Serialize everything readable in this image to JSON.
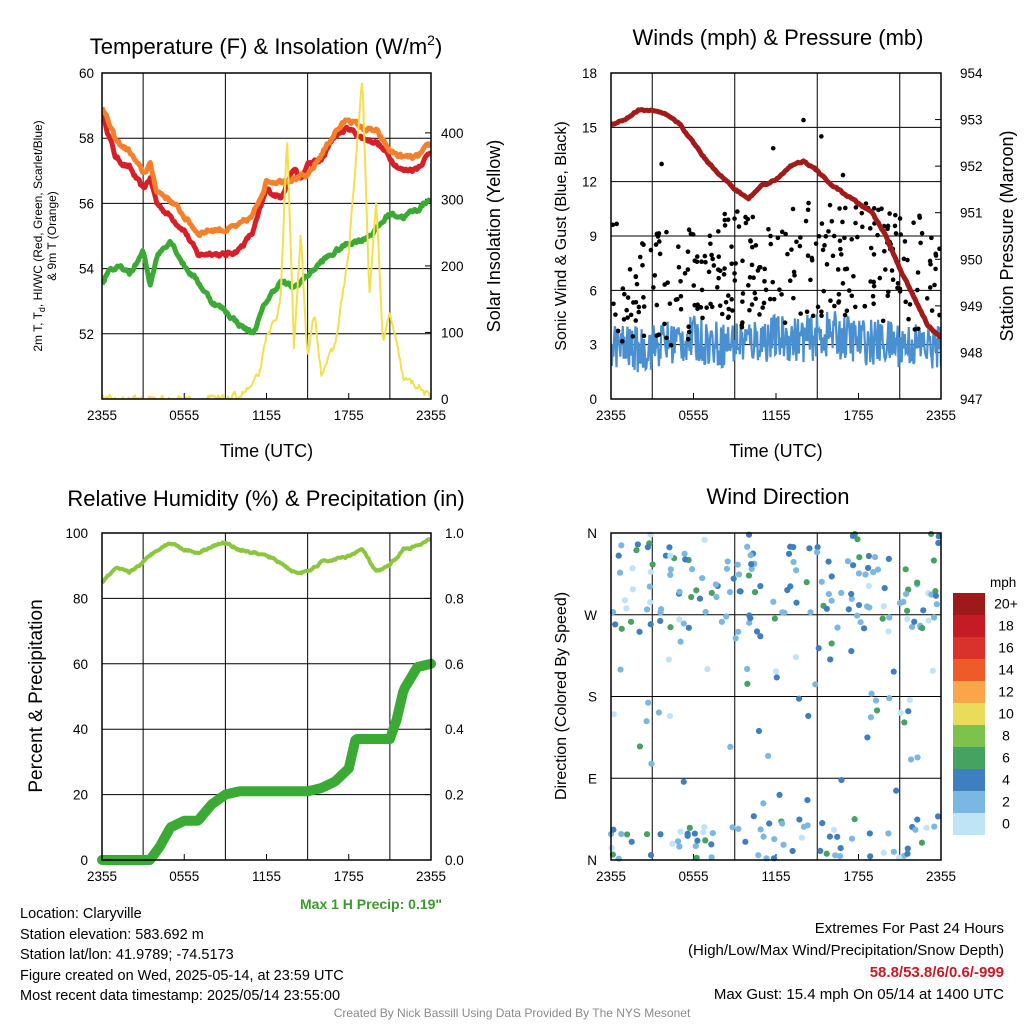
{
  "colors": {
    "red": "#d62027",
    "orange": "#f4802c",
    "green": "#3aaa35",
    "yellow": "#f4e04d",
    "maroon": "#a11b1b",
    "blue": "#4a90d0",
    "black": "#000000",
    "lightgreen": "#8cc63f"
  },
  "chart_data": [
    {
      "id": "temperature",
      "type": "line",
      "title": "Temperature (F) & Insolation (W/m",
      "title_superscript": "2",
      "title_suffix": ")",
      "xlabel": "Time (UTC)",
      "ylabel_left_lines": [
        "2m T, T",
        "d",
        ", HI/WC (Red, Green, Scarlet/Blue)",
        "& 9m T (Orange)"
      ],
      "ylabel_right": "Solar Insolation (Yellow)",
      "x_ticks": [
        "2355",
        "0555",
        "1155",
        "1755",
        "2355"
      ],
      "ylim": [
        50,
        60
      ],
      "yticks": [
        52,
        54,
        56,
        58,
        60
      ],
      "ylim_right": [
        0,
        490
      ],
      "yticks_right": [
        0,
        100,
        200,
        300,
        400
      ],
      "series": [
        {
          "name": "2m T (Red)",
          "axis": "left",
          "color": "#d62027",
          "anchors": [
            [
              0,
              58.8
            ],
            [
              1,
              57.4
            ],
            [
              2,
              57.1
            ],
            [
              3,
              56.4
            ],
            [
              3.5,
              56.8
            ],
            [
              4,
              56.0
            ],
            [
              5,
              55.6
            ],
            [
              6,
              55.2
            ],
            [
              7,
              54.4
            ],
            [
              8,
              54.5
            ],
            [
              9,
              54.4
            ],
            [
              10,
              54.6
            ],
            [
              11,
              55.1
            ],
            [
              12,
              56.4
            ],
            [
              13,
              56.2
            ],
            [
              14,
              57.1
            ],
            [
              14.5,
              56.7
            ],
            [
              15,
              57.2
            ],
            [
              16,
              57.3
            ],
            [
              17,
              58.1
            ],
            [
              18,
              58.3
            ],
            [
              19,
              58.0
            ],
            [
              20,
              57.9
            ],
            [
              21,
              57.4
            ],
            [
              22,
              57.0
            ],
            [
              23,
              57.1
            ],
            [
              24,
              57.6
            ]
          ]
        },
        {
          "name": "9m T (Orange)",
          "axis": "left",
          "color": "#f4802c",
          "anchors": [
            [
              0,
              59.0
            ],
            [
              1,
              57.9
            ],
            [
              2,
              57.6
            ],
            [
              3,
              56.9
            ],
            [
              3.5,
              57.2
            ],
            [
              4,
              56.4
            ],
            [
              5,
              56.1
            ],
            [
              6,
              55.6
            ],
            [
              7,
              55.1
            ],
            [
              8,
              55.2
            ],
            [
              9,
              55.2
            ],
            [
              10,
              55.3
            ],
            [
              11,
              55.6
            ],
            [
              12,
              56.7
            ],
            [
              13,
              56.7
            ],
            [
              14,
              56.8
            ],
            [
              15,
              56.8
            ],
            [
              16,
              57.5
            ],
            [
              17,
              58.2
            ],
            [
              18,
              58.6
            ],
            [
              19,
              58.3
            ],
            [
              20,
              58.2
            ],
            [
              21,
              57.6
            ],
            [
              22,
              57.4
            ],
            [
              23,
              57.4
            ],
            [
              24,
              57.8
            ]
          ]
        },
        {
          "name": "2m Td (Green)",
          "axis": "left",
          "color": "#3aaa35",
          "anchors": [
            [
              0,
              53.5
            ],
            [
              0.5,
              54.0
            ],
            [
              1.5,
              54.0
            ],
            [
              2,
              53.8
            ],
            [
              3,
              54.5
            ],
            [
              3.5,
              53.5
            ],
            [
              4,
              54.4
            ],
            [
              5,
              54.9
            ],
            [
              6,
              54.1
            ],
            [
              7,
              53.6
            ],
            [
              8,
              53.0
            ],
            [
              9,
              52.7
            ],
            [
              10,
              52.3
            ],
            [
              11,
              52.0
            ],
            [
              12,
              53.0
            ],
            [
              13,
              53.6
            ],
            [
              14,
              53.4
            ],
            [
              15,
              53.8
            ],
            [
              16,
              54.2
            ],
            [
              17,
              54.5
            ],
            [
              18,
              54.8
            ],
            [
              19,
              54.9
            ],
            [
              20,
              55.2
            ],
            [
              21,
              55.7
            ],
            [
              22,
              55.6
            ],
            [
              23,
              55.8
            ],
            [
              24,
              56.2
            ]
          ]
        },
        {
          "name": "Solar Insolation (Yellow)",
          "axis": "right",
          "color": "#f4e04d",
          "anchors": [
            [
              0,
              0
            ],
            [
              9,
              0
            ],
            [
              10,
              5
            ],
            [
              11,
              20
            ],
            [
              11.5,
              40
            ],
            [
              12,
              90
            ],
            [
              13,
              140
            ],
            [
              13.5,
              390
            ],
            [
              14,
              80
            ],
            [
              14.5,
              250
            ],
            [
              15,
              60
            ],
            [
              15.5,
              130
            ],
            [
              16,
              40
            ],
            [
              17,
              80
            ],
            [
              18,
              220
            ],
            [
              19,
              485
            ],
            [
              19.5,
              150
            ],
            [
              20,
              300
            ],
            [
              20.5,
              80
            ],
            [
              21,
              130
            ],
            [
              22,
              30
            ],
            [
              23,
              20
            ],
            [
              24,
              0
            ]
          ]
        }
      ]
    },
    {
      "id": "winds",
      "type": "line",
      "title": "Winds (mph) & Pressure (mb)",
      "xlabel": "Time (UTC)",
      "ylabel_left": "Sonic Wind & Gust (Blue, Black)",
      "ylabel_right": "Station Pressure (Maroon)",
      "x_ticks": [
        "2355",
        "0555",
        "1155",
        "1755",
        "2355"
      ],
      "ylim": [
        0,
        18
      ],
      "yticks": [
        0,
        3,
        6,
        9,
        12,
        15,
        18
      ],
      "ylim_right": [
        947,
        954
      ],
      "yticks_right": [
        947,
        948,
        949,
        950,
        951,
        952,
        953,
        954
      ],
      "series": [
        {
          "name": "Station Pressure (Maroon)",
          "axis": "right",
          "color": "#a11b1b",
          "anchors": [
            [
              0,
              952.9
            ],
            [
              1,
              953.0
            ],
            [
              2,
              953.2
            ],
            [
              3,
              953.2
            ],
            [
              4,
              953.1
            ],
            [
              5,
              952.9
            ],
            [
              6,
              952.5
            ],
            [
              7,
              952.1
            ],
            [
              8,
              951.8
            ],
            [
              9,
              951.5
            ],
            [
              10,
              951.3
            ],
            [
              11,
              951.6
            ],
            [
              12,
              951.7
            ],
            [
              13,
              952.0
            ],
            [
              14,
              952.1
            ],
            [
              15,
              951.9
            ],
            [
              16,
              951.6
            ],
            [
              17,
              951.4
            ],
            [
              18,
              951.2
            ],
            [
              19,
              951.0
            ],
            [
              20,
              950.5
            ],
            [
              21,
              949.8
            ],
            [
              22,
              949.2
            ],
            [
              23,
              948.6
            ],
            [
              24,
              948.3
            ]
          ]
        },
        {
          "name": "Sonic Wind (Blue)",
          "axis": "left",
          "color": "#4a90d0",
          "anchors": [
            [
              0,
              3.0
            ],
            [
              2,
              2.7
            ],
            [
              4,
              3.1
            ],
            [
              6,
              3.3
            ],
            [
              8,
              3.0
            ],
            [
              10,
              3.2
            ],
            [
              12,
              3.4
            ],
            [
              14,
              3.3
            ],
            [
              16,
              3.6
            ],
            [
              18,
              3.2
            ],
            [
              20,
              3.1
            ],
            [
              22,
              3.0
            ],
            [
              24,
              2.8
            ]
          ]
        },
        {
          "name": "Gust (Black)",
          "axis": "left",
          "color": "#000000",
          "anchors": [
            [
              0,
              6.5
            ],
            [
              4,
              6.0
            ],
            [
              8,
              7.0
            ],
            [
              12,
              7.0
            ],
            [
              16,
              8.0
            ],
            [
              20,
              7.5
            ],
            [
              24,
              6.5
            ]
          ],
          "max": 15.4
        }
      ]
    },
    {
      "id": "humidity",
      "type": "line",
      "title": "Relative Humidity (%) & Precipitation (in)",
      "ylabel_left": "Percent & Precipitation",
      "x_ticks": [
        "2355",
        "0555",
        "1155",
        "1755",
        "2355"
      ],
      "ylim": [
        0,
        100
      ],
      "yticks": [
        0,
        20,
        40,
        60,
        80,
        100
      ],
      "ylim_right": [
        0,
        1.0
      ],
      "yticks_right": [
        "0.0",
        "0.2",
        "0.4",
        "0.6",
        "0.8",
        "1.0"
      ],
      "annotation": "Max 1 H Precip: 0.19\"",
      "series": [
        {
          "name": "Relative Humidity",
          "axis": "left",
          "color": "#8cc63f",
          "anchors": [
            [
              0,
              85
            ],
            [
              1,
              89
            ],
            [
              2,
              88
            ],
            [
              3,
              91
            ],
            [
              4,
              95
            ],
            [
              5,
              97
            ],
            [
              6,
              95
            ],
            [
              7,
              94
            ],
            [
              8,
              96
            ],
            [
              9,
              97
            ],
            [
              10,
              95
            ],
            [
              11,
              94
            ],
            [
              12,
              93
            ],
            [
              13,
              91
            ],
            [
              14,
              88
            ],
            [
              15,
              88
            ],
            [
              16,
              91
            ],
            [
              17,
              92
            ],
            [
              18,
              93
            ],
            [
              19,
              95
            ],
            [
              20,
              88
            ],
            [
              21,
              90
            ],
            [
              22,
              95
            ],
            [
              23,
              96
            ],
            [
              24,
              98
            ]
          ]
        },
        {
          "name": "Precipitation",
          "axis": "right",
          "color": "#3aaa35",
          "anchors": [
            [
              0,
              0.0
            ],
            [
              3.5,
              0.0
            ],
            [
              4.2,
              0.04
            ],
            [
              5,
              0.1
            ],
            [
              6,
              0.12
            ],
            [
              7,
              0.12
            ],
            [
              8,
              0.17
            ],
            [
              9,
              0.2
            ],
            [
              10,
              0.21
            ],
            [
              12,
              0.21
            ],
            [
              13,
              0.21
            ],
            [
              15,
              0.21
            ],
            [
              16,
              0.22
            ],
            [
              17,
              0.24
            ],
            [
              18,
              0.28
            ],
            [
              18.5,
              0.37
            ],
            [
              21,
              0.37
            ],
            [
              21.5,
              0.43
            ],
            [
              22,
              0.52
            ],
            [
              23,
              0.59
            ],
            [
              24,
              0.6
            ]
          ]
        }
      ]
    },
    {
      "id": "wind_direction",
      "type": "scatter",
      "title": "Wind Direction",
      "ylabel_left": "Direction (Colored By Speed)",
      "x_ticks": [
        "2355",
        "0555",
        "1155",
        "1755",
        "2355"
      ],
      "y_ticks": [
        "N",
        "E",
        "S",
        "W",
        "N"
      ],
      "ylim": [
        0,
        360
      ],
      "legend_title": "mph",
      "legend_labels": [
        "20+",
        "18",
        "16",
        "14",
        "12",
        "10",
        "8",
        "6",
        "4",
        "2",
        "0"
      ],
      "legend_colors": [
        "#9e1a1a",
        "#c51b25",
        "#d8322b",
        "#ee5a2a",
        "#f9a54a",
        "#e9dc5b",
        "#7dc24d",
        "#45a260",
        "#3f7fc0",
        "#7ab7e3",
        "#bfe4f6"
      ]
    }
  ],
  "info": {
    "location": "Location: Claryville",
    "elevation": "Station elevation: 583.692 m",
    "latlon": "Station lat/lon: 41.9789; -74.5173",
    "created": "Figure created on Wed, 2025-05-14, at 23:59 UTC",
    "recent": "Most recent data timestamp: 2025/05/14 23:55:00"
  },
  "extremes": {
    "title": "Extremes For Past 24 Hours",
    "subtitle": "(High/Low/Max Wind/Precipitation/Snow Depth)",
    "values": "58.8/53.8/6/0.6/-999",
    "max_gust": "Max Gust: 15.4 mph On 05/14 at 1400 UTC"
  },
  "credit": "Created By Nick Bassill Using Data Provided By The NYS Mesonet"
}
